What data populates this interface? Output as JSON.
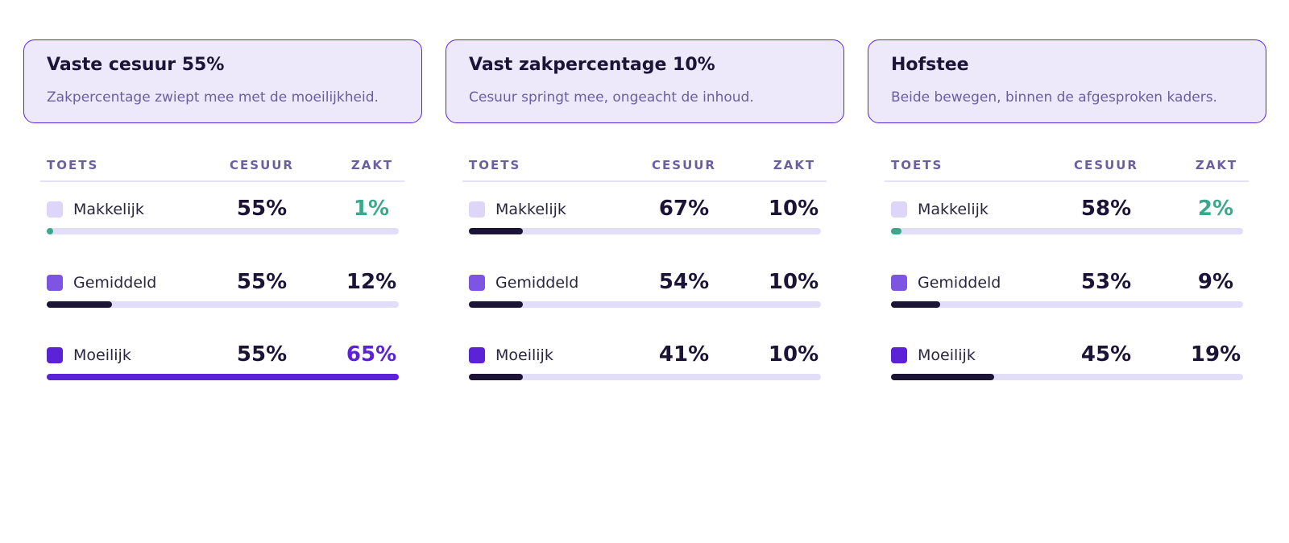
{
  "panels": [
    {
      "title": "Vaste cesuur 55%",
      "subtitle": "Zakpercentage zwiept mee met de moeilijkheid.",
      "headers": [
        "TOETS",
        "CESUUR",
        "ZAKT"
      ],
      "rows": [
        {
          "label": "Makkelijk",
          "cesuur": "55%",
          "zakt": "1%",
          "swatch": "#ddd6f8",
          "color": "#3aa88a"
        },
        {
          "label": "Gemiddeld",
          "cesuur": "55%",
          "zakt": "12%",
          "swatch": "#7e55e3",
          "color": "#1c1436"
        },
        {
          "label": "Moeilijk",
          "cesuur": "55%",
          "zakt": "65%",
          "swatch": "#5b22d8",
          "color": "#5b22d8"
        }
      ]
    },
    {
      "title": "Vast zakpercentage 10%",
      "subtitle": "Cesuur springt mee, ongeacht de inhoud.",
      "headers": [
        "TOETS",
        "CESUUR",
        "ZAKT"
      ],
      "rows": [
        {
          "label": "Makkelijk",
          "cesuur": "67%",
          "zakt": "10%",
          "swatch": "#ddd6f8",
          "color": "#1c1436"
        },
        {
          "label": "Gemiddeld",
          "cesuur": "54%",
          "zakt": "10%",
          "swatch": "#7e55e3",
          "color": "#1c1436"
        },
        {
          "label": "Moeilijk",
          "cesuur": "41%",
          "zakt": "10%",
          "swatch": "#5b22d8",
          "color": "#1c1436"
        }
      ]
    },
    {
      "title": "Hofstee",
      "subtitle": "Beide bewegen, binnen de afgesproken kaders.",
      "headers": [
        "TOETS",
        "CESUUR",
        "ZAKT"
      ],
      "rows": [
        {
          "label": "Makkelijk",
          "cesuur": "58%",
          "zakt": "2%",
          "swatch": "#ddd6f8",
          "color": "#3aa88a"
        },
        {
          "label": "Gemiddeld",
          "cesuur": "53%",
          "zakt": "9%",
          "swatch": "#7e55e3",
          "color": "#1c1436"
        },
        {
          "label": "Moeilijk",
          "cesuur": "45%",
          "zakt": "19%",
          "swatch": "#5b22d8",
          "color": "#1c1436"
        }
      ]
    }
  ]
}
